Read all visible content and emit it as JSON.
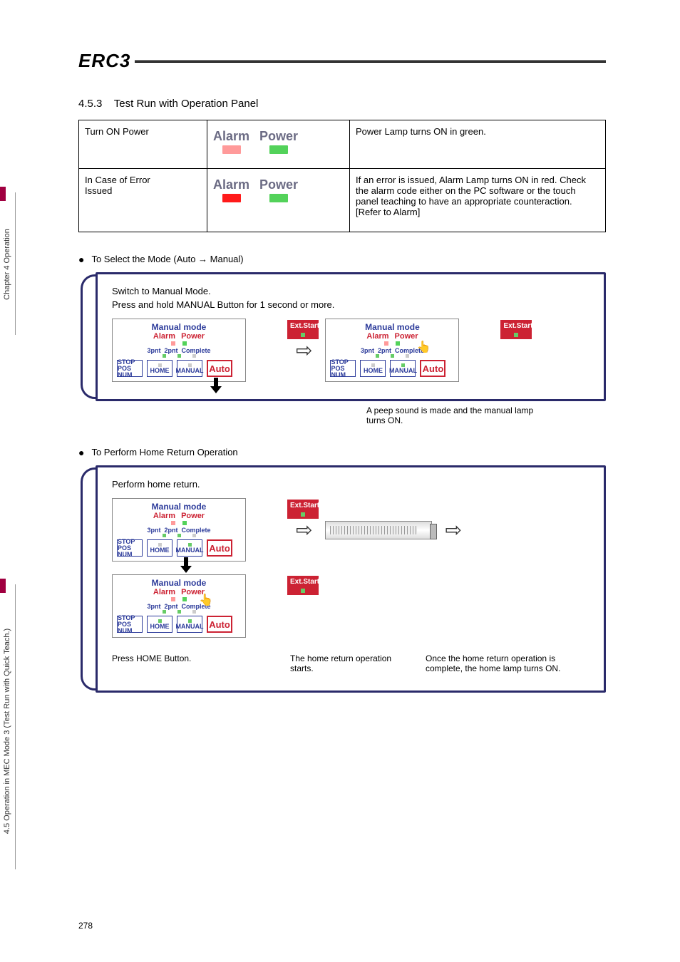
{
  "colors": {
    "ink": "#000000",
    "navy": "#2a2a6a",
    "btn_blue": "#2b3a9a",
    "red": "#c23030",
    "led_red": "#ff1a1a",
    "led_green": "#53d25a",
    "led_green_dark": "#4aa84f",
    "grey_text": "#6b6b84"
  },
  "logo": {
    "text": "ERC3"
  },
  "section": {
    "number": "4.5.3",
    "title": "Test Run with Operation Panel"
  },
  "sidebar": {
    "top": "Chapter 4 Operation",
    "bottom": "4.5 Operation in MEC Mode 3 (Test Run with Quick Teach.)"
  },
  "table": {
    "rows": [
      {
        "label": "Turn ON Power",
        "lamp": {
          "alarm": "Alarm",
          "power": "Power",
          "alarm_color": "#ff9a9a",
          "power_color": "#53d25a"
        },
        "desc": "Power Lamp turns ON in green."
      },
      {
        "label_l1": "In Case of Error",
        "label_l2": "Issued",
        "lamp": {
          "alarm": "Alarm",
          "power": "Power",
          "alarm_color": "#ff1a1a",
          "power_color": "#53d25a"
        },
        "desc": "If an error is issued, Alarm Lamp turns ON in red. Check the alarm code either on the PC software or the touch panel teaching to have an appropriate counteraction.\n[Refer to Alarm]"
      }
    ]
  },
  "bullets": {
    "mode": "To Select the Mode (Auto → Manual)",
    "home": "To Perform Home Return Operation"
  },
  "flow1": {
    "line1": "Switch to Manual Mode.",
    "line2": "Press and hold MANUAL Button for 1 second or more.",
    "caption": "A peep sound is made and the manual lamp turns ON."
  },
  "flow2": {
    "line1": "Perform home return.",
    "cap_press": "Press HOME Button.",
    "cap_run": "The home return operation starts.",
    "cap_done": "Once the home return operation is complete, the home lamp turns ON."
  },
  "panel": {
    "manual_mode": "Manual mode",
    "alarm": "Alarm",
    "power": "Power",
    "pnt3": "3pnt",
    "pnt2": "2pnt",
    "complete": "Complete",
    "stop": "STOP",
    "posnum": "POS NUM",
    "home": "HOME",
    "manual": "MANUAL",
    "auto": "Auto",
    "ext": "Ext.Start",
    "led_colors": {
      "alarm_off": "#ff9a9a",
      "power_on": "#53d25a",
      "dot_green": "#6c6",
      "dot_off": "#ccc"
    }
  },
  "page_number": "278"
}
